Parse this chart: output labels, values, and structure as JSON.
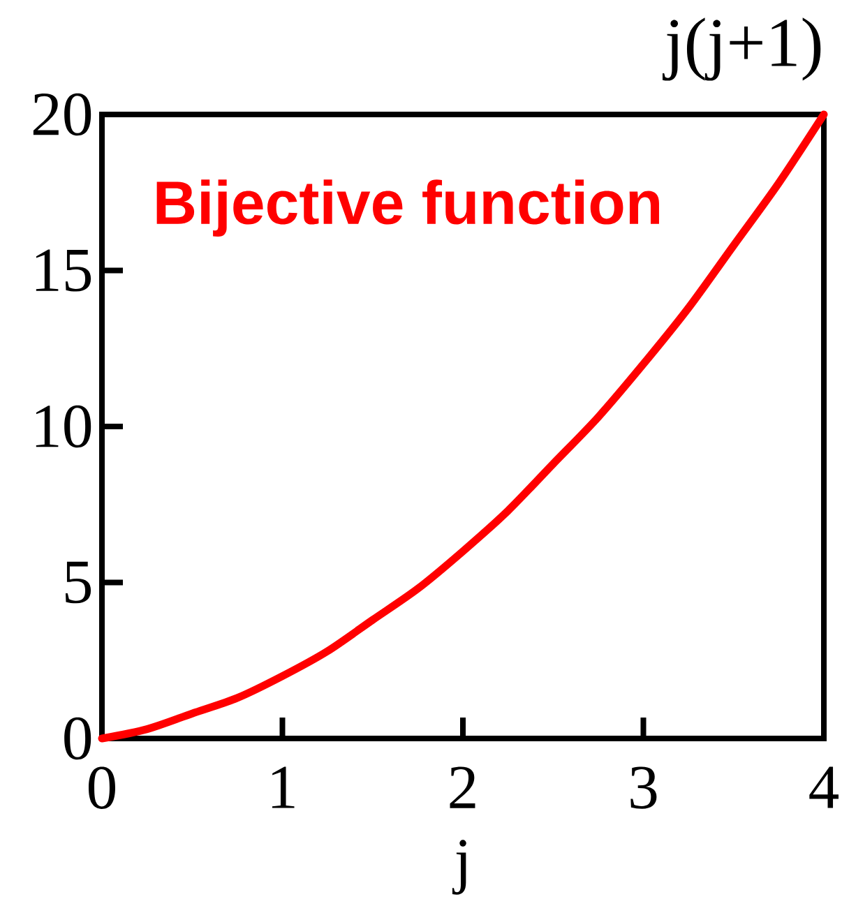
{
  "chart_data": {
    "type": "line",
    "xlabel": "j",
    "ylabel": "j(j+1)",
    "x": [
      0,
      0.25,
      0.5,
      0.75,
      1,
      1.25,
      1.5,
      1.75,
      2,
      2.25,
      2.5,
      2.75,
      3,
      3.25,
      3.5,
      3.75,
      4
    ],
    "series": [
      {
        "name": "Bijective function",
        "color": "#ff0000",
        "values": [
          0,
          0.3,
          0.8,
          1.3,
          2,
          2.8,
          3.8,
          4.8,
          6,
          7.3,
          8.8,
          10.3,
          12,
          13.8,
          15.8,
          17.8,
          20
        ]
      }
    ],
    "xlim": [
      0,
      4
    ],
    "ylim": [
      0,
      20
    ],
    "xticks": [
      0,
      1,
      2,
      3,
      4
    ],
    "yticks": [
      0,
      5,
      10,
      15,
      20
    ],
    "marker": "none",
    "line_style": "solid"
  }
}
